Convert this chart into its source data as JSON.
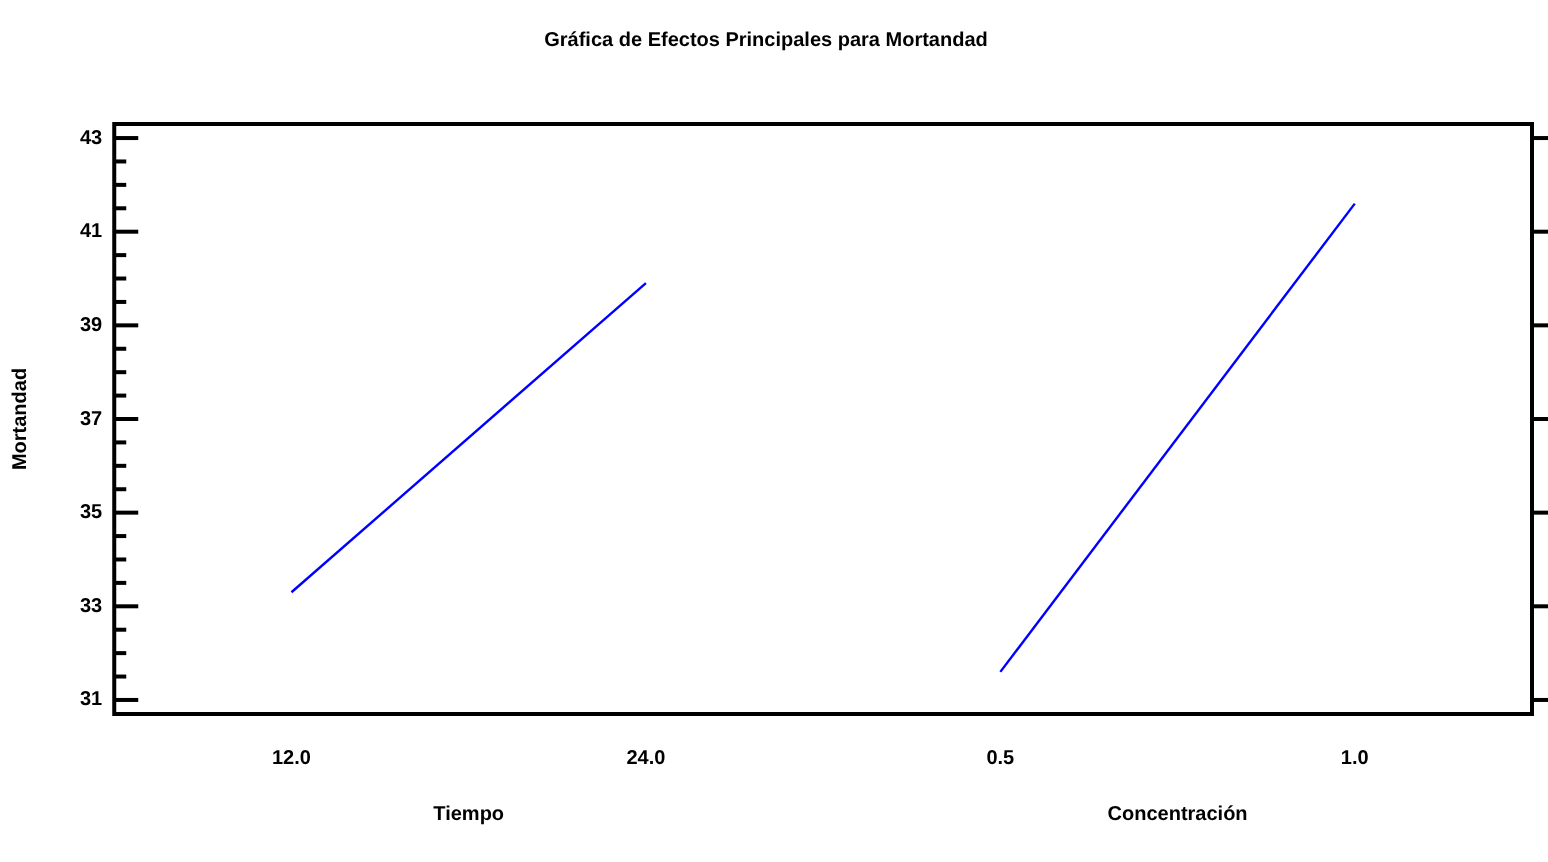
{
  "chart_data": {
    "type": "line",
    "title": "Gráfica de Efectos Principales para Mortandad",
    "ylabel": "Mortandad",
    "categories": [
      "12.0",
      "24.0",
      "0.5",
      "1.0"
    ],
    "series": [
      {
        "color": "#0000ff",
        "values": [
          33.3,
          39.9,
          null,
          null
        ]
      },
      {
        "color": "#0000ff",
        "values": [
          null,
          null,
          31.6,
          41.6
        ]
      }
    ],
    "annotations": [
      "Tiempo",
      "Concentración"
    ],
    "ylim": [
      30.7,
      43.3
    ],
    "yticks": [
      31,
      {
        "value": 31.5,
        "label": null
      },
      {
        "value": 32,
        "label": null
      },
      {
        "value": 32.5,
        "label": null
      },
      33,
      {
        "value": 33.5,
        "label": null
      },
      {
        "value": 34,
        "label": null
      },
      {
        "value": 34.5,
        "label": null
      },
      35,
      {
        "value": 35.5,
        "label": null
      },
      {
        "value": 36,
        "label": null
      },
      {
        "value": 36.5,
        "label": null
      },
      37,
      {
        "value": 37.5,
        "label": null
      },
      {
        "value": 38,
        "label": null
      },
      {
        "value": 38.5,
        "label": null
      },
      39,
      {
        "value": 39.5,
        "label": null
      },
      {
        "value": 40,
        "label": null
      },
      {
        "value": 40.5,
        "label": null
      },
      41,
      {
        "value": 41.5,
        "label": null
      },
      {
        "value": 42,
        "label": null
      },
      {
        "value": 42.5,
        "label": null
      },
      43
    ],
    "grid": false,
    "legend": false,
    "marker": "none",
    "line_style": "solid"
  }
}
